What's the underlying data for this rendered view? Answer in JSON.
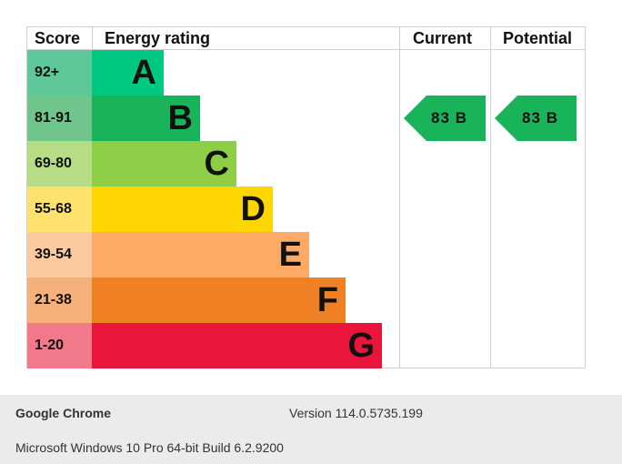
{
  "table": {
    "headers": {
      "score": "Score",
      "rating": "Energy rating",
      "current": "Current",
      "potential": "Potential"
    },
    "bands": [
      {
        "range": "92+",
        "letter": "A",
        "score_color": "#5fc89a",
        "bar_color": "#00c781"
      },
      {
        "range": "81-91",
        "letter": "B",
        "score_color": "#6fc58b",
        "bar_color": "#19b459"
      },
      {
        "range": "69-80",
        "letter": "C",
        "score_color": "#b6dd85",
        "bar_color": "#8dce46"
      },
      {
        "range": "55-68",
        "letter": "D",
        "score_color": "#ffe16e",
        "bar_color": "#ffd500"
      },
      {
        "range": "39-54",
        "letter": "E",
        "score_color": "#fdc99f",
        "bar_color": "#fcaa65"
      },
      {
        "range": "21-38",
        "letter": "F",
        "score_color": "#f6b079",
        "bar_color": "#ef8023"
      },
      {
        "range": "1-20",
        "letter": "G",
        "score_color": "#f1798a",
        "bar_color": "#e9153b"
      }
    ],
    "current": {
      "value": "83",
      "letter": "B",
      "color": "#19b459"
    },
    "potential": {
      "value": "83",
      "letter": "B",
      "color": "#19b459"
    }
  },
  "footer": {
    "app_name": "Google Chrome",
    "version": "Version 114.0.5735.199",
    "os": "Microsoft Windows 10 Pro 64-bit Build 6.2.9200"
  }
}
